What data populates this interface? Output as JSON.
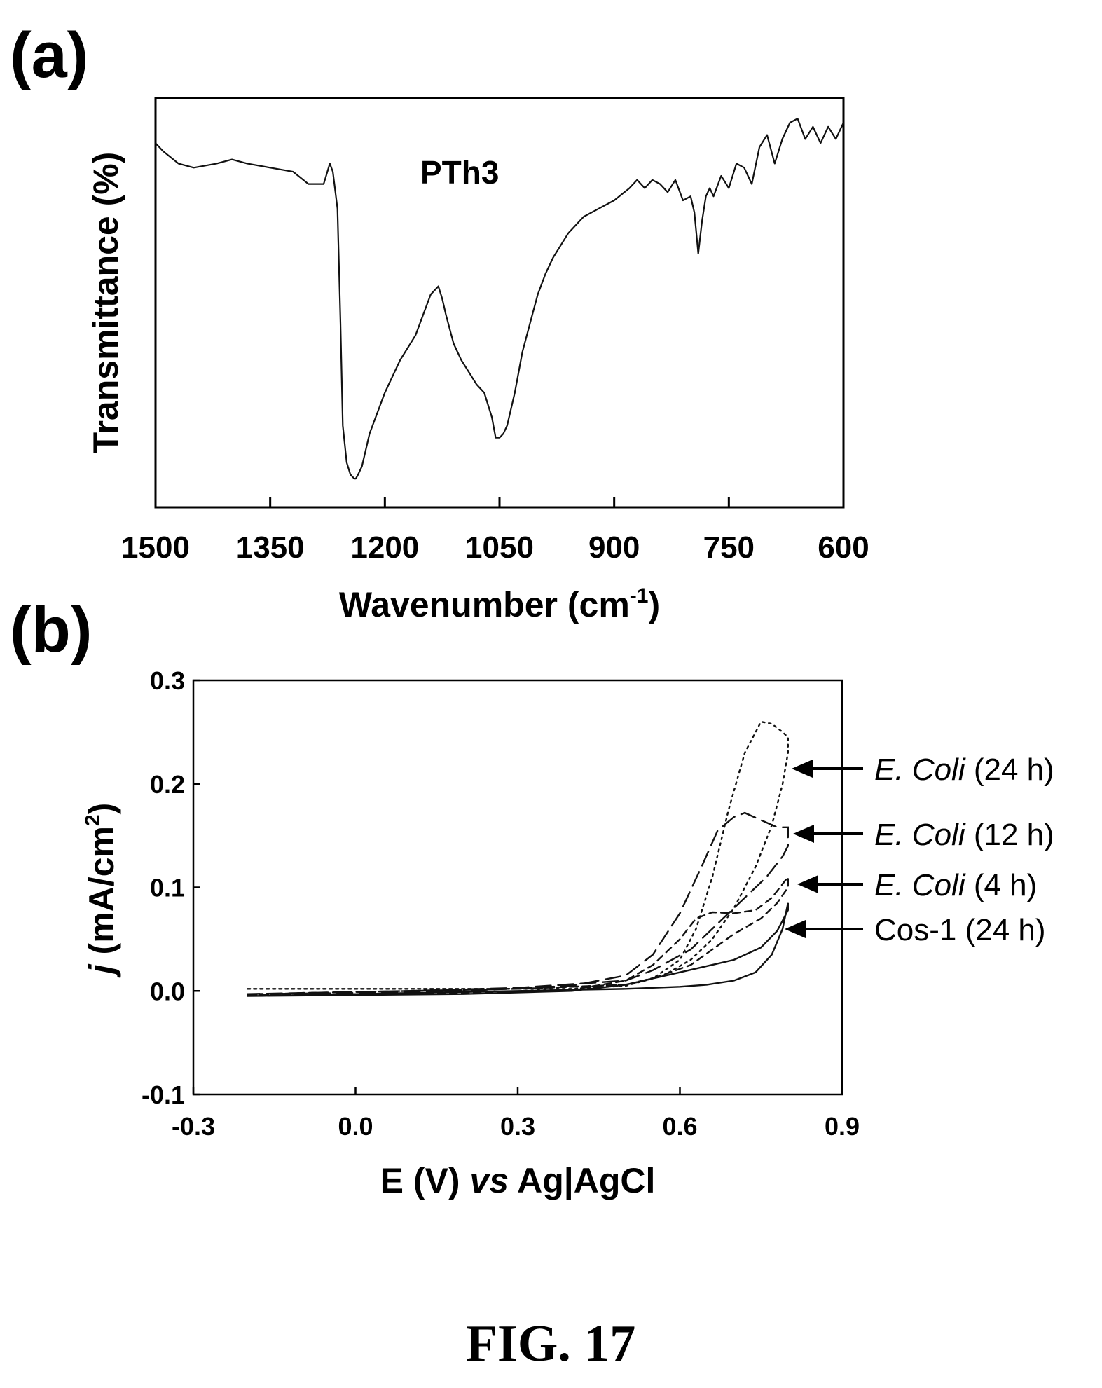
{
  "figure_caption": "FIG. 17",
  "chart_data": [
    {
      "panel_label": "(a)",
      "type": "line",
      "annotation": "PTh3",
      "xlabel": "Wavenumber (cm",
      "xlabel_sup": "-1",
      "xlabel_close": ")",
      "ylabel": "Transmittance (%)",
      "x_reversed": true,
      "xlim": [
        1500,
        600
      ],
      "xticks": [
        "1500",
        "1350",
        "1200",
        "1050",
        "900",
        "750",
        "600"
      ],
      "y_ticks_shown": false,
      "ylim": [
        0,
        100
      ],
      "grid": false,
      "series": [
        {
          "x": [
            1500,
            1490,
            1470,
            1450,
            1420,
            1400,
            1380,
            1350,
            1320,
            1300,
            1280,
            1272,
            1268,
            1262,
            1258,
            1255,
            1250,
            1245,
            1240,
            1238,
            1235,
            1230,
            1220,
            1200,
            1180,
            1160,
            1140,
            1130,
            1125,
            1120,
            1110,
            1100,
            1090,
            1080,
            1070,
            1060,
            1055,
            1050,
            1045,
            1040,
            1030,
            1020,
            1010,
            1000,
            990,
            980,
            960,
            940,
            920,
            900,
            880,
            870,
            860,
            850,
            840,
            830,
            820,
            810,
            800,
            795,
            790,
            785,
            780,
            775,
            770,
            760,
            750,
            740,
            730,
            720,
            710,
            700,
            690,
            680,
            670,
            660,
            650,
            640,
            630,
            620,
            610,
            600
          ],
          "y": [
            89,
            87,
            84,
            83,
            84,
            85,
            84,
            83,
            82,
            79,
            79,
            84,
            82,
            73,
            45,
            20,
            11,
            8,
            7,
            7,
            8,
            10,
            18,
            28,
            36,
            42,
            52,
            54,
            51,
            47,
            40,
            36,
            33,
            30,
            28,
            22,
            17,
            17,
            18,
            20,
            28,
            38,
            45,
            52,
            57,
            61,
            67,
            71,
            73,
            75,
            78,
            80,
            78,
            80,
            79,
            77,
            80,
            75,
            76,
            72,
            62,
            70,
            76,
            78,
            76,
            81,
            78,
            84,
            83,
            79,
            88,
            91,
            84,
            90,
            94,
            95,
            90,
            93,
            89,
            93,
            90,
            94
          ]
        }
      ]
    },
    {
      "panel_label": "(b)",
      "type": "line",
      "xlabel": "E (V) ",
      "xlabel_italic": "vs",
      "xlabel_end": " Ag|AgCl",
      "ylabel_italic": "j",
      "ylabel": " (mA/cm",
      "ylabel_sup": "2",
      "ylabel_close": ")",
      "xlim": [
        -0.3,
        0.9
      ],
      "ylim": [
        -0.1,
        0.3
      ],
      "xticks": [
        "-0.3",
        "0.0",
        "0.3",
        "0.6",
        "0.9"
      ],
      "yticks": [
        "0.3",
        "0.2",
        "0.1",
        "0.0",
        "-0.1"
      ],
      "grid": false,
      "series": [
        {
          "name": "Cos-1 (24 h)",
          "name_italic": "",
          "name_rest": "Cos-1 (24 h)",
          "style": "solid",
          "x": [
            -0.2,
            0.0,
            0.2,
            0.4,
            0.5,
            0.55,
            0.6,
            0.65,
            0.7,
            0.75,
            0.78,
            0.8,
            0.8,
            0.79,
            0.77,
            0.74,
            0.7,
            0.65,
            0.6,
            0.5,
            0.3,
            0.1,
            -0.1,
            -0.2
          ],
          "y": [
            -0.005,
            -0.004,
            -0.003,
            0.0,
            0.006,
            0.012,
            0.018,
            0.024,
            0.03,
            0.042,
            0.058,
            0.078,
            0.085,
            0.06,
            0.035,
            0.018,
            0.01,
            0.006,
            0.004,
            0.002,
            0.0,
            -0.002,
            -0.004,
            -0.005
          ]
        },
        {
          "name": "E. Coli (4 h)",
          "name_italic": "E. Coli",
          "name_rest": " (4 h)",
          "style": "short-dash",
          "x": [
            -0.2,
            0.0,
            0.2,
            0.4,
            0.5,
            0.55,
            0.6,
            0.63,
            0.66,
            0.7,
            0.74,
            0.77,
            0.8,
            0.8,
            0.78,
            0.75,
            0.7,
            0.66,
            0.62,
            0.55,
            0.5,
            0.3,
            0.1,
            -0.1,
            -0.2
          ],
          "y": [
            -0.004,
            -0.003,
            -0.002,
            0.001,
            0.01,
            0.025,
            0.05,
            0.07,
            0.076,
            0.075,
            0.078,
            0.09,
            0.11,
            0.1,
            0.085,
            0.07,
            0.055,
            0.04,
            0.025,
            0.012,
            0.006,
            0.002,
            0.0,
            -0.002,
            -0.004
          ]
        },
        {
          "name": "E. Coli (12 h)",
          "name_italic": "E. Coli",
          "name_rest": " (12 h)",
          "style": "dash",
          "x": [
            -0.2,
            0.0,
            0.2,
            0.4,
            0.5,
            0.55,
            0.6,
            0.64,
            0.67,
            0.7,
            0.72,
            0.75,
            0.78,
            0.8,
            0.8,
            0.79,
            0.76,
            0.72,
            0.68,
            0.62,
            0.55,
            0.5,
            0.3,
            0.1,
            -0.1,
            -0.2
          ],
          "y": [
            -0.003,
            -0.002,
            0.0,
            0.005,
            0.015,
            0.035,
            0.075,
            0.12,
            0.155,
            0.168,
            0.172,
            0.165,
            0.158,
            0.158,
            0.14,
            0.13,
            0.11,
            0.09,
            0.07,
            0.04,
            0.02,
            0.01,
            0.003,
            0.0,
            -0.002,
            -0.003
          ]
        },
        {
          "name": "E. Coli (24 h)",
          "name_italic": "E. Coli",
          "name_rest": " (24 h)",
          "style": "dot",
          "x": [
            -0.2,
            0.0,
            0.2,
            0.4,
            0.5,
            0.55,
            0.6,
            0.63,
            0.66,
            0.69,
            0.72,
            0.75,
            0.77,
            0.79,
            0.8,
            0.8,
            0.79,
            0.77,
            0.74,
            0.7,
            0.66,
            0.62,
            0.57,
            0.5,
            0.3,
            0.1,
            -0.1,
            -0.2
          ],
          "y": [
            0.002,
            0.002,
            0.002,
            0.002,
            0.005,
            0.012,
            0.03,
            0.06,
            0.11,
            0.175,
            0.23,
            0.26,
            0.258,
            0.25,
            0.245,
            0.23,
            0.2,
            0.16,
            0.12,
            0.08,
            0.05,
            0.03,
            0.015,
            0.006,
            0.002,
            0.002,
            0.002,
            0.002
          ]
        }
      ]
    }
  ]
}
